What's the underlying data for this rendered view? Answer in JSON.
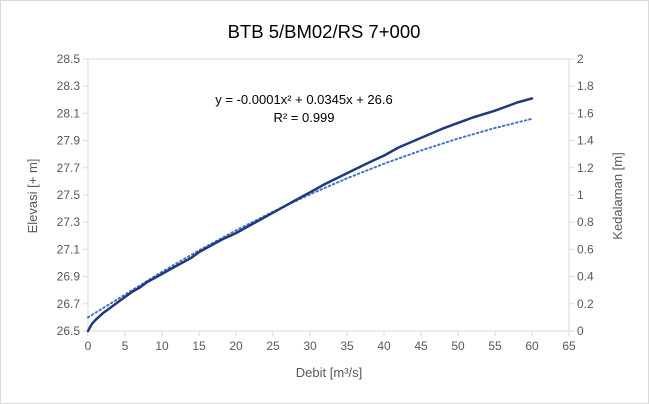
{
  "chart_data": {
    "type": "line",
    "title": "BTB 5/BM02/RS 7+000",
    "xlabel": "Debit [m³/s]",
    "ylabel": "Elevasi [+ m]",
    "y2label": "Kedalaman [m]",
    "xlim": [
      0,
      65
    ],
    "ylim": [
      26.5,
      28.5
    ],
    "y2lim": [
      0,
      2
    ],
    "x_ticks": [
      "0",
      "5",
      "10",
      "15",
      "20",
      "25",
      "30",
      "35",
      "40",
      "45",
      "50",
      "55",
      "60",
      "65"
    ],
    "y_ticks": [
      "26.5",
      "26.7",
      "26.9",
      "27.1",
      "27.3",
      "27.5",
      "27.7",
      "27.9",
      "28.1",
      "28.3",
      "28.5"
    ],
    "y2_ticks": [
      "0",
      "0.2",
      "0.4",
      "0.6",
      "0.8",
      "1",
      "1.2",
      "1.4",
      "1.6",
      "1.8",
      "2"
    ],
    "grid": false,
    "series": [
      {
        "style": "solid",
        "color": "#1f3a7a",
        "x": [
          0,
          0.5,
          1,
          2,
          3,
          4,
          5,
          6,
          7,
          8,
          9,
          10,
          12,
          14,
          15,
          18,
          20,
          22,
          25,
          28,
          30,
          32,
          35,
          38,
          40,
          42,
          45,
          48,
          50,
          52,
          55,
          58,
          60
        ],
        "y": [
          26.5,
          26.55,
          26.58,
          26.63,
          26.67,
          26.71,
          26.75,
          26.79,
          26.82,
          26.86,
          26.89,
          26.92,
          26.98,
          27.04,
          27.08,
          27.17,
          27.22,
          27.28,
          27.37,
          27.46,
          27.52,
          27.58,
          27.66,
          27.74,
          27.79,
          27.85,
          27.92,
          27.99,
          28.03,
          28.07,
          28.12,
          28.18,
          28.21
        ]
      },
      {
        "style": "dotted",
        "color": "#4472c4",
        "x": [
          0,
          5,
          10,
          15,
          20,
          25,
          30,
          35,
          40,
          45,
          50,
          55,
          60
        ],
        "y": [
          26.6,
          26.7675,
          26.935,
          27.0925,
          27.24,
          27.3775,
          27.505,
          27.6225,
          27.73,
          27.8275,
          27.915,
          27.9925,
          28.06
        ]
      }
    ],
    "trendline_equation": "y = -0.0001x² + 0.0345x + 26.6",
    "r_squared": "R² = 0.999"
  }
}
